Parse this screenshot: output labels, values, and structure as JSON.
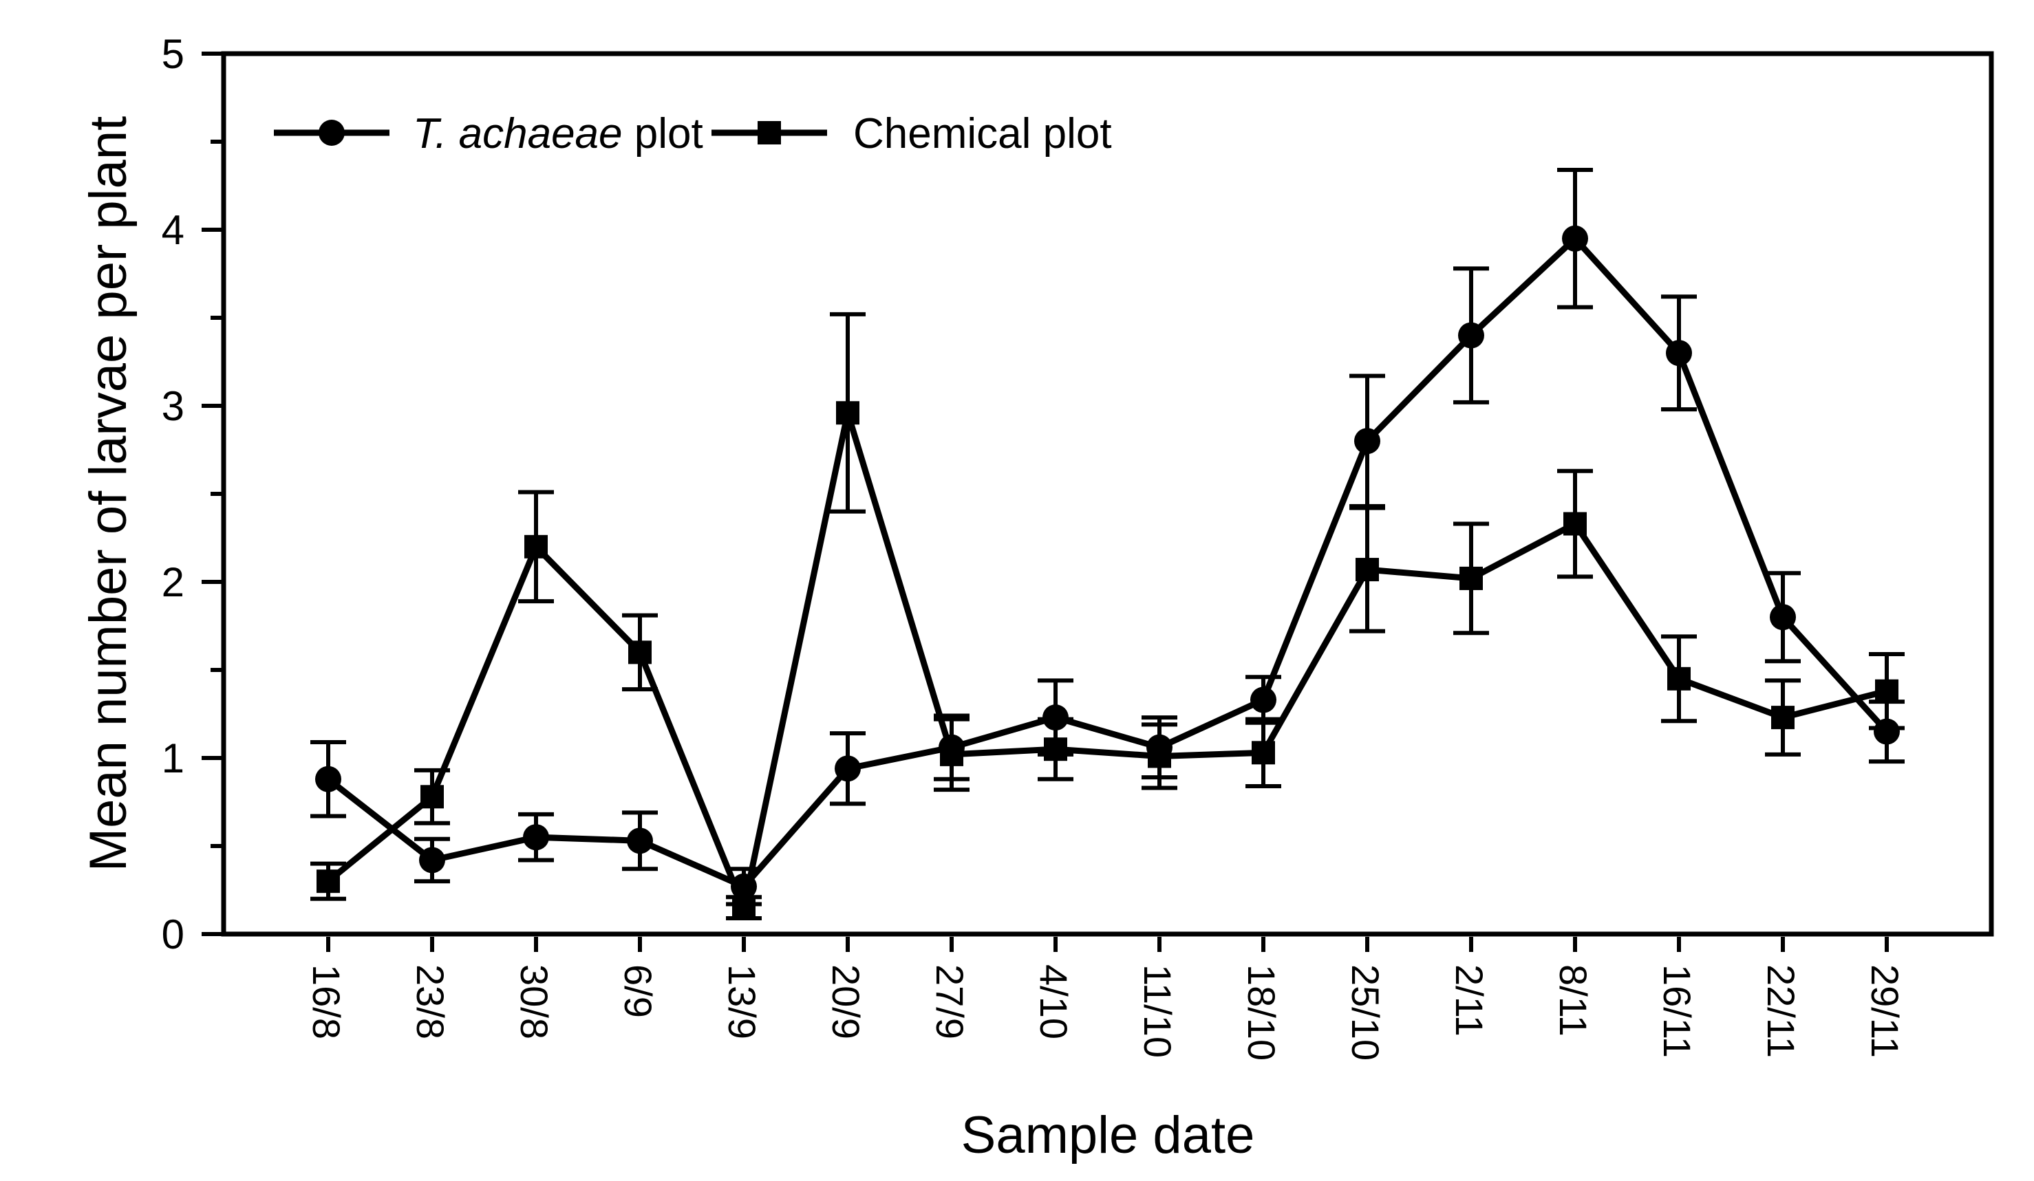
{
  "figure": {
    "background_color": "#ffffff",
    "ink_color": "#000000"
  },
  "chart_data": {
    "type": "line",
    "title": "",
    "xlabel": "Sample date",
    "ylabel": "Mean number of larvae per plant",
    "categories": [
      "16/8",
      "23/8",
      "30/8",
      "6/9",
      "13/9",
      "20/9",
      "27/9",
      "4/10",
      "11/10",
      "18/10",
      "25/10",
      "2/11",
      "8/11",
      "16/11",
      "22/11",
      "29/11"
    ],
    "ylim": [
      0,
      5
    ],
    "y_major_ticks": [
      0,
      1,
      2,
      3,
      4,
      5
    ],
    "y_minor_tick_step": 0.5,
    "x_tick_label_rotation_deg": 90,
    "grid": false,
    "legend_position": "top-left-inside",
    "error_bars": true,
    "series": [
      {
        "name": "T. achaeae plot",
        "label_parts": [
          {
            "text": "T. achaeae",
            "italic": true
          },
          {
            "text": " plot",
            "italic": false
          }
        ],
        "marker": "circle",
        "color": "#000000",
        "values": [
          0.88,
          0.42,
          0.55,
          0.53,
          0.27,
          0.94,
          1.06,
          1.23,
          1.06,
          1.33,
          2.8,
          3.4,
          3.95,
          3.3,
          1.8,
          1.15
        ],
        "errors": [
          0.21,
          0.12,
          0.13,
          0.16,
          0.1,
          0.2,
          0.18,
          0.21,
          0.17,
          0.13,
          0.37,
          0.38,
          0.39,
          0.32,
          0.25,
          0.17
        ]
      },
      {
        "name": "Chemical plot",
        "label_parts": [
          {
            "text": "Chemical plot",
            "italic": false
          }
        ],
        "marker": "square",
        "color": "#000000",
        "values": [
          0.3,
          0.78,
          2.2,
          1.6,
          0.15,
          2.96,
          1.02,
          1.05,
          1.01,
          1.03,
          2.07,
          2.02,
          2.33,
          1.45,
          1.23,
          1.38
        ],
        "errors": [
          0.1,
          0.15,
          0.31,
          0.21,
          0.06,
          0.56,
          0.2,
          0.17,
          0.18,
          0.19,
          0.35,
          0.31,
          0.3,
          0.24,
          0.21,
          0.21
        ]
      }
    ]
  }
}
